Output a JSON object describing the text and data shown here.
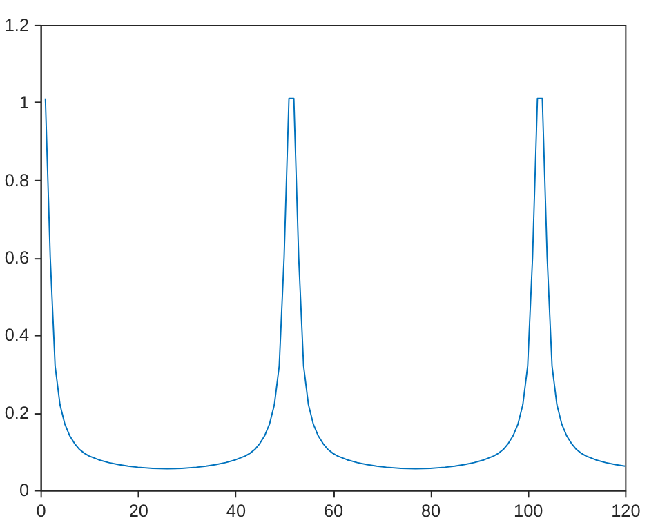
{
  "chart_data": {
    "type": "line",
    "x": [
      1,
      2,
      3,
      4,
      5,
      6,
      7,
      8,
      9,
      10,
      12,
      14,
      16,
      18,
      20,
      23,
      26,
      29,
      32,
      34,
      36,
      38,
      40,
      42,
      43,
      44,
      45,
      46,
      47,
      48,
      49,
      50,
      51,
      52,
      53,
      54,
      55,
      56,
      57,
      58,
      59,
      60,
      61,
      63,
      65,
      67,
      69,
      71,
      74,
      77,
      80,
      83,
      85,
      87,
      89,
      91,
      93,
      94,
      95,
      96,
      97,
      98,
      99,
      100,
      101,
      102,
      103,
      104,
      105,
      106,
      107,
      108,
      109,
      110,
      111,
      112,
      114,
      116,
      118,
      120
    ],
    "series": [
      {
        "color": "#0072bd",
        "values": [
          1.01,
          0.6,
          0.32,
          0.22,
          0.17,
          0.14,
          0.12,
          0.105,
          0.095,
          0.088,
          0.078,
          0.071,
          0.066,
          0.062,
          0.059,
          0.056,
          0.055,
          0.056,
          0.059,
          0.062,
          0.066,
          0.071,
          0.078,
          0.088,
          0.095,
          0.105,
          0.12,
          0.14,
          0.17,
          0.22,
          0.32,
          0.6,
          1.01,
          1.01,
          0.6,
          0.32,
          0.22,
          0.17,
          0.14,
          0.12,
          0.105,
          0.095,
          0.088,
          0.078,
          0.071,
          0.066,
          0.062,
          0.059,
          0.056,
          0.055,
          0.056,
          0.059,
          0.062,
          0.066,
          0.071,
          0.078,
          0.088,
          0.095,
          0.105,
          0.12,
          0.14,
          0.17,
          0.22,
          0.32,
          0.6,
          1.01,
          1.01,
          0.6,
          0.32,
          0.22,
          0.17,
          0.14,
          0.12,
          0.105,
          0.095,
          0.088,
          0.078,
          0.071,
          0.066,
          0.062
        ]
      }
    ],
    "xlim": [
      0,
      120
    ],
    "xticks": [
      0,
      20,
      40,
      60,
      80,
      100,
      120
    ],
    "ylim": [
      0,
      1.2
    ],
    "yticks": [
      0,
      0.2,
      0.4,
      0.6,
      0.8,
      1,
      1.2
    ],
    "grid": false,
    "legend": false
  }
}
